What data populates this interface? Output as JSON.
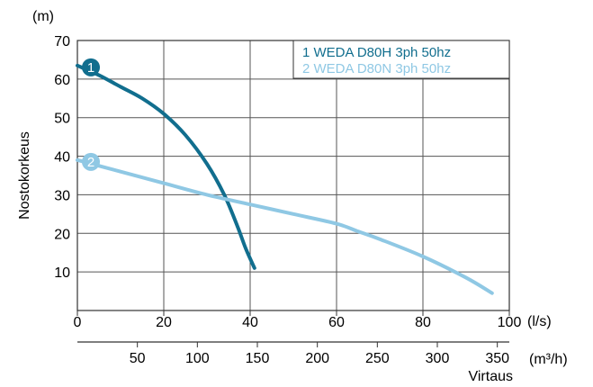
{
  "colors": {
    "series1": "#116e8e",
    "series2": "#8fc8e4",
    "grid": "#555555",
    "text": "#000000"
  },
  "chart_data": {
    "type": "line",
    "ylabel": "Nostokorkeus",
    "yunit": "(m)",
    "xunit_primary": "(l/s)",
    "xunit_secondary": "(m³/h)",
    "xlabel": "Virtaus",
    "xlim": [
      0,
      100
    ],
    "ylim": [
      0,
      70
    ],
    "grid": true,
    "legend_position": "top-right",
    "yticks": [
      10,
      20,
      30,
      40,
      50,
      60,
      70
    ],
    "xticks_primary": [
      0,
      20,
      40,
      60,
      80,
      100
    ],
    "xticks_secondary": [
      50,
      100,
      150,
      200,
      250,
      300,
      350
    ],
    "series": [
      {
        "name": "1 WEDA D80H 3ph 50hz",
        "badge": "1",
        "color": "#116e8e",
        "points": [
          [
            0,
            63.5
          ],
          [
            5,
            61
          ],
          [
            10,
            58
          ],
          [
            15,
            55
          ],
          [
            20,
            51
          ],
          [
            25,
            45.5
          ],
          [
            30,
            38
          ],
          [
            34,
            30
          ],
          [
            37,
            22
          ],
          [
            39,
            16
          ],
          [
            41,
            11
          ]
        ]
      },
      {
        "name": "2 WEDA D80N 3ph 50hz",
        "badge": "2",
        "color": "#8fc8e4",
        "points": [
          [
            0,
            39
          ],
          [
            10,
            36
          ],
          [
            20,
            33
          ],
          [
            30,
            30
          ],
          [
            40,
            27.5
          ],
          [
            50,
            25
          ],
          [
            60,
            22.5
          ],
          [
            65,
            20.5
          ],
          [
            70,
            18.5
          ],
          [
            80,
            14
          ],
          [
            90,
            8.5
          ],
          [
            96,
            4.5
          ]
        ]
      }
    ]
  }
}
